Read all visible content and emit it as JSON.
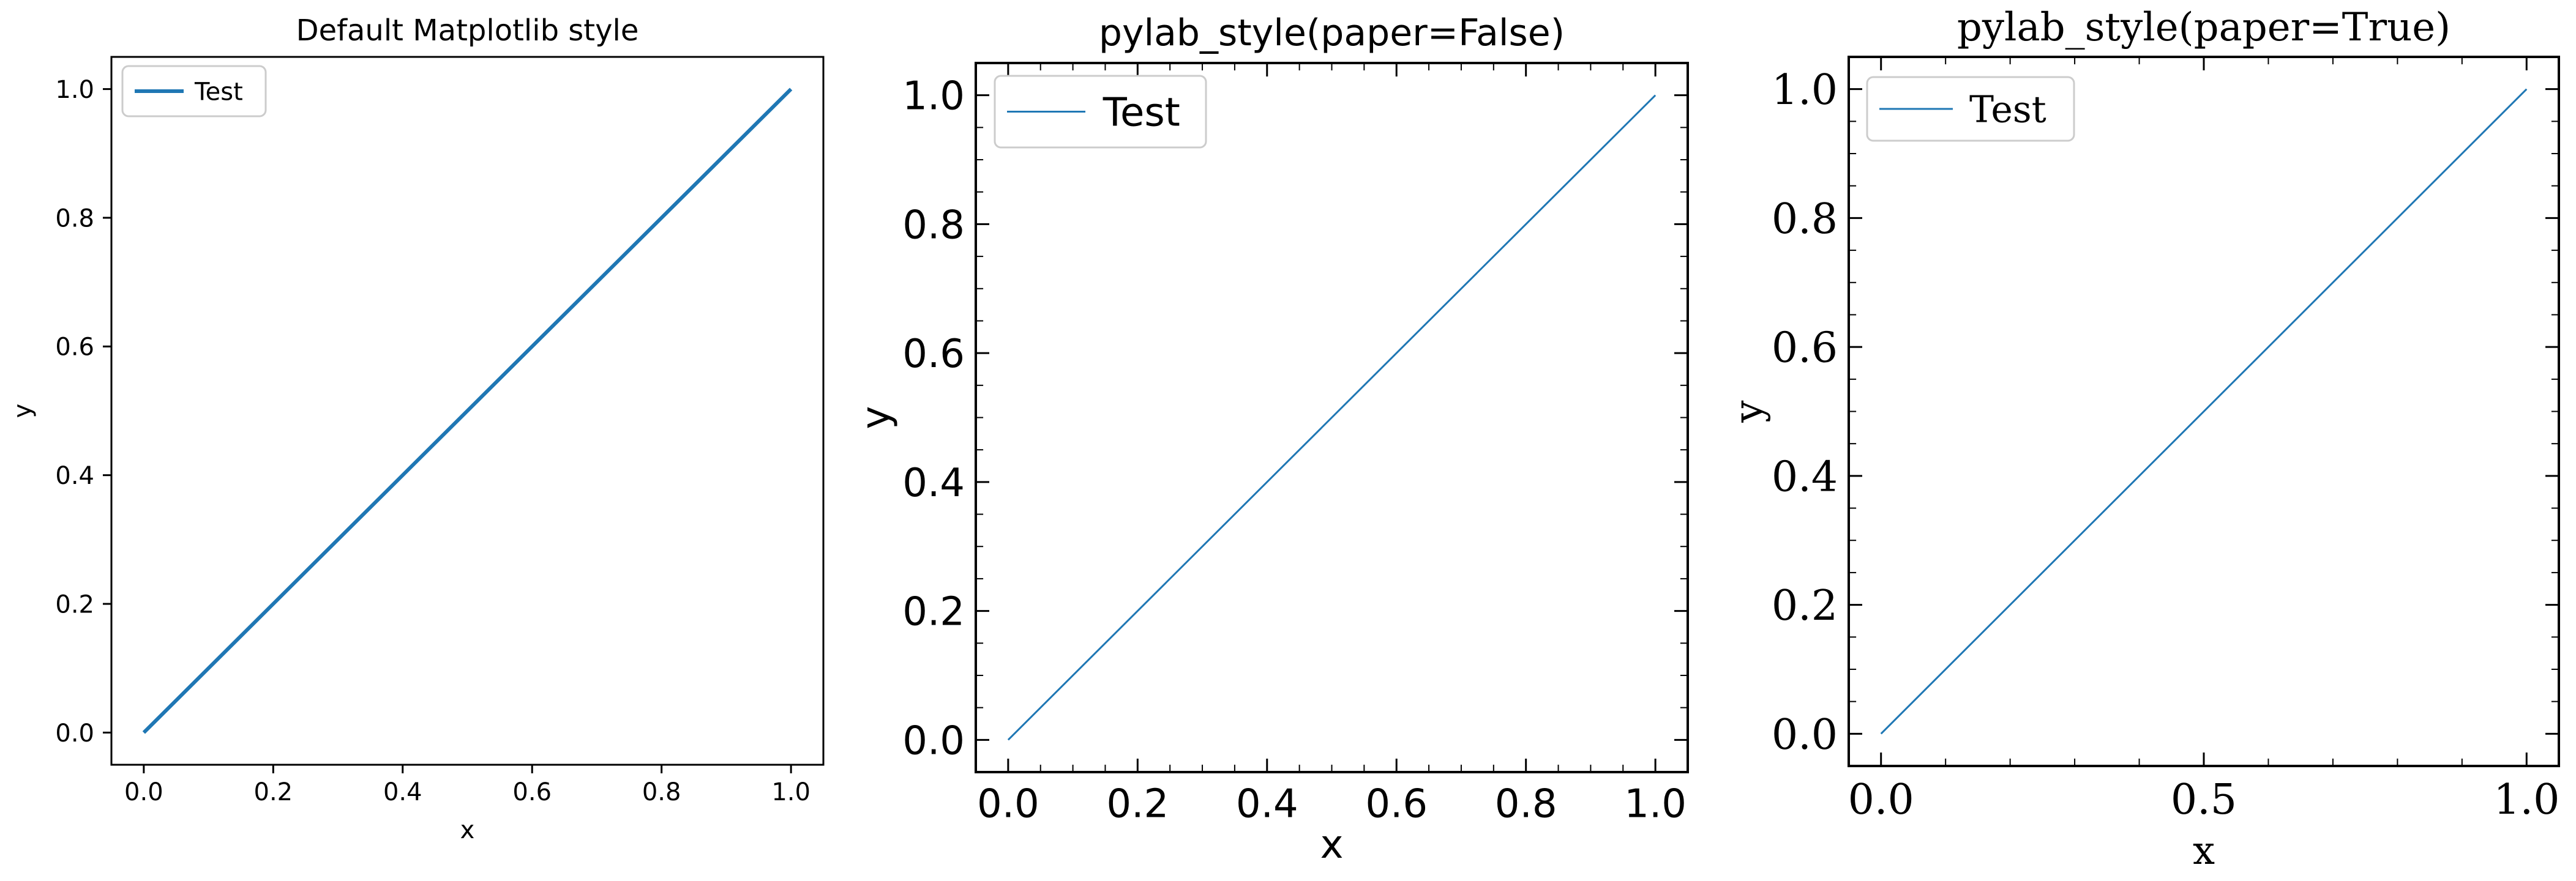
{
  "figure": {
    "line_color": "#1f77b4",
    "panel_count": 3
  },
  "chart_data": [
    {
      "type": "line",
      "title": "Default Matplotlib style",
      "xlabel": "x",
      "ylabel": "y",
      "xlim": [
        -0.05,
        1.05
      ],
      "ylim": [
        -0.05,
        1.05
      ],
      "xticks": [
        0.0,
        0.2,
        0.4,
        0.6,
        0.8,
        1.0
      ],
      "xtick_labels": [
        "0.0",
        "0.2",
        "0.4",
        "0.6",
        "0.8",
        "1.0"
      ],
      "yticks": [
        0.0,
        0.2,
        0.4,
        0.6,
        0.8,
        1.0
      ],
      "ytick_labels": [
        "0.0",
        "0.2",
        "0.4",
        "0.6",
        "0.8",
        "1.0"
      ],
      "legend": {
        "location": "upper-left",
        "entries": [
          "Test"
        ]
      },
      "grid": false,
      "series": [
        {
          "name": "Test",
          "x": [
            0.0,
            1.0
          ],
          "y": [
            0.0,
            1.0
          ],
          "color": "#1f77b4"
        }
      ]
    },
    {
      "type": "line",
      "title": "pylab_style(paper=False)",
      "xlabel": "x",
      "ylabel": "y",
      "xlim": [
        -0.05,
        1.05
      ],
      "ylim": [
        -0.05,
        1.05
      ],
      "xticks": [
        0.0,
        0.2,
        0.4,
        0.6,
        0.8,
        1.0
      ],
      "xtick_labels": [
        "0.0",
        "0.2",
        "0.4",
        "0.6",
        "0.8",
        "1.0"
      ],
      "yticks": [
        0.0,
        0.2,
        0.4,
        0.6,
        0.8,
        1.0
      ],
      "ytick_labels": [
        "0.0",
        "0.2",
        "0.4",
        "0.6",
        "0.8",
        "1.0"
      ],
      "legend": {
        "location": "upper-left",
        "entries": [
          "Test"
        ]
      },
      "grid": false,
      "series": [
        {
          "name": "Test",
          "x": [
            0.0,
            1.0
          ],
          "y": [
            0.0,
            1.0
          ],
          "color": "#1f77b4"
        }
      ]
    },
    {
      "type": "line",
      "title": "pylab_style(paper=True)",
      "xlabel": "x",
      "ylabel": "y",
      "xlim": [
        -0.05,
        1.05
      ],
      "ylim": [
        -0.05,
        1.05
      ],
      "xticks": [
        0.0,
        0.5,
        1.0
      ],
      "xtick_labels": [
        "0.0",
        "0.5",
        "1.0"
      ],
      "yticks": [
        0.0,
        0.2,
        0.4,
        0.6,
        0.8,
        1.0
      ],
      "ytick_labels": [
        "0.0",
        "0.2",
        "0.4",
        "0.6",
        "0.8",
        "1.0"
      ],
      "legend": {
        "location": "upper-left",
        "entries": [
          "Test"
        ]
      },
      "grid": false,
      "series": [
        {
          "name": "Test",
          "x": [
            0.0,
            1.0
          ],
          "y": [
            0.0,
            1.0
          ],
          "color": "#1f77b4"
        }
      ]
    }
  ]
}
